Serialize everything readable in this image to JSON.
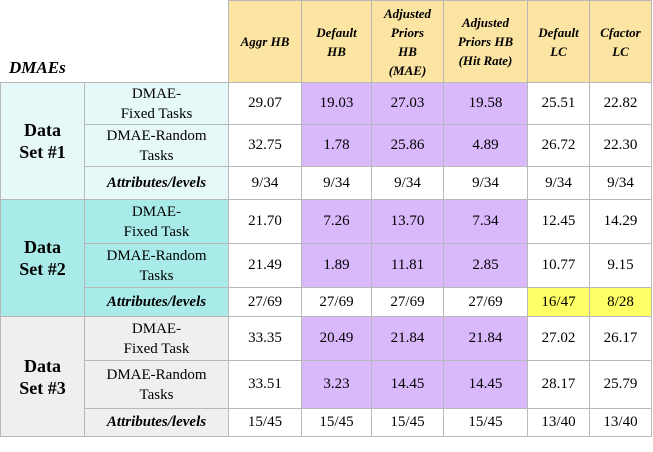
{
  "corner_label": "DMAEs",
  "columns": [
    {
      "lines": [
        "Aggr HB"
      ]
    },
    {
      "lines": [
        "Default",
        "HB"
      ]
    },
    {
      "lines": [
        "Adjusted",
        "Priors",
        "HB",
        "(MAE)"
      ]
    },
    {
      "lines": [
        "Adjusted",
        "Priors HB",
        "(Hit Rate)"
      ]
    },
    {
      "lines": [
        "Default",
        "LC"
      ]
    },
    {
      "lines": [
        "Cfactor",
        "LC"
      ]
    }
  ],
  "data_sets": [
    {
      "label_lines": [
        "Data",
        "Set #1"
      ],
      "rows": [
        {
          "label_lines": [
            "DMAE-",
            "Fixed Tasks"
          ],
          "values": [
            "29.07",
            "19.03",
            "27.03",
            "19.58",
            "25.51",
            "22.82"
          ]
        },
        {
          "label_lines": [
            "DMAE-Random",
            "Tasks"
          ],
          "values": [
            "32.75",
            "1.78",
            "25.86",
            "4.89",
            "26.72",
            "22.30"
          ]
        }
      ],
      "attributes": {
        "label": "Attributes/levels",
        "values": [
          "9/34",
          "9/34",
          "9/34",
          "9/34",
          "9/34",
          "9/34"
        ]
      }
    },
    {
      "label_lines": [
        "Data",
        "Set #2"
      ],
      "rows": [
        {
          "label_lines": [
            "DMAE-",
            "Fixed Task"
          ],
          "values": [
            "21.70",
            "7.26",
            "13.70",
            "7.34",
            "12.45",
            "14.29"
          ]
        },
        {
          "label_lines": [
            "DMAE-Random",
            "Tasks"
          ],
          "values": [
            "21.49",
            "1.89",
            "11.81",
            "2.85",
            "10.77",
            "9.15"
          ]
        }
      ],
      "attributes": {
        "label": "Attributes/levels",
        "values": [
          "27/69",
          "27/69",
          "27/69",
          "27/69",
          "16/47",
          "8/28"
        ]
      }
    },
    {
      "label_lines": [
        "Data",
        "Set #3"
      ],
      "rows": [
        {
          "label_lines": [
            "DMAE-",
            "Fixed Task"
          ],
          "values": [
            "33.35",
            "20.49",
            "21.84",
            "21.84",
            "27.02",
            "26.17"
          ]
        },
        {
          "label_lines": [
            "DMAE-Random",
            "Tasks"
          ],
          "values": [
            "33.51",
            "3.23",
            "14.45",
            "14.45",
            "28.17",
            "25.79"
          ]
        }
      ],
      "attributes": {
        "label": "Attributes/levels",
        "values": [
          "15/45",
          "15/45",
          "15/45",
          "15/45",
          "13/40",
          "13/40"
        ]
      }
    }
  ],
  "colors": {
    "header_bg": "#fce4a3",
    "set1_bg": "#e6f8f8",
    "set2_bg": "#a8ebe8",
    "set3_bg": "#efefef",
    "purple_highlight": "#d9b8fb",
    "yellow_highlight": "#ffff66"
  }
}
